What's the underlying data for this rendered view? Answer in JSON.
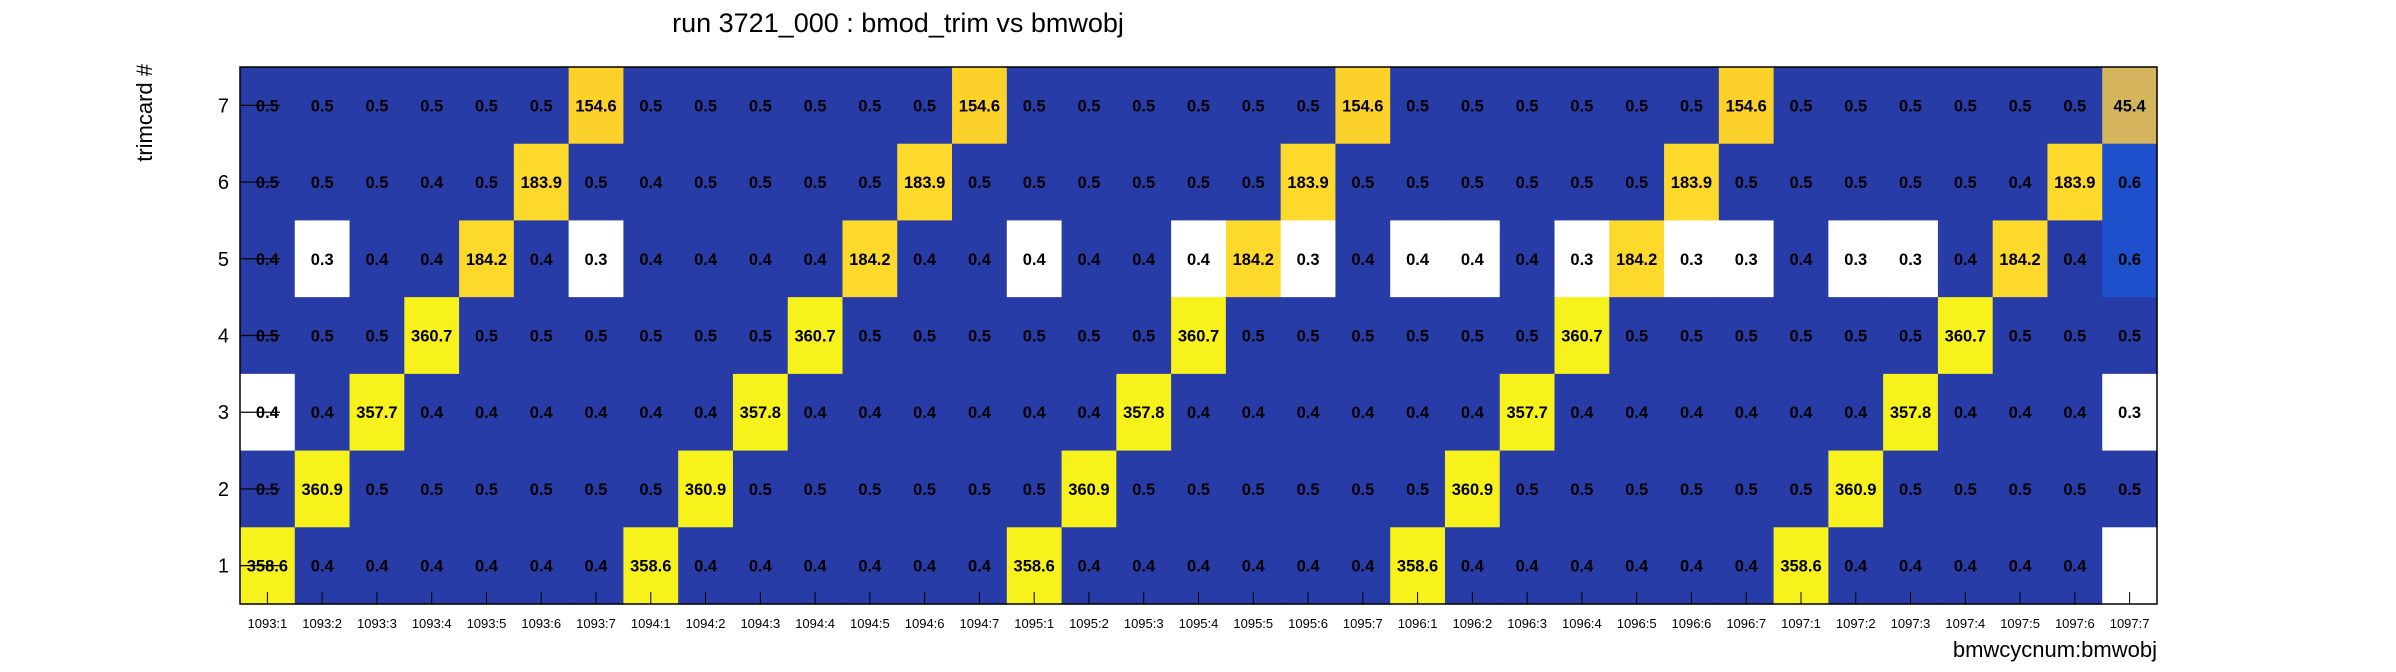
{
  "chart_data": {
    "type": "heatmap",
    "title": "run 3721_000 : bmod_trim vs bmwobj",
    "xlabel": "bmwcycnum:bmwobj",
    "ylabel": "trimcard #",
    "x_categories": [
      "1093:1",
      "1093:2",
      "1093:3",
      "1093:4",
      "1093:5",
      "1093:6",
      "1093:7",
      "1094:1",
      "1094:2",
      "1094:3",
      "1094:4",
      "1094:5",
      "1094:6",
      "1094:7",
      "1095:1",
      "1095:2",
      "1095:3",
      "1095:4",
      "1095:5",
      "1095:6",
      "1095:7",
      "1096:1",
      "1096:2",
      "1096:3",
      "1096:4",
      "1096:5",
      "1096:6",
      "1096:7",
      "1097:1",
      "1097:2",
      "1097:3",
      "1097:4",
      "1097:5",
      "1097:6",
      "1097:7"
    ],
    "y_categories": [
      "1",
      "2",
      "3",
      "4",
      "5",
      "6",
      "7"
    ],
    "rows": [
      {
        "y": "7",
        "cells": [
          "0.5",
          "0.5",
          "0.5",
          "0.5",
          "0.5",
          "0.5",
          "154.6",
          "0.5",
          "0.5",
          "0.5",
          "0.5",
          "0.5",
          "0.5",
          "154.6",
          "0.5",
          "0.5",
          "0.5",
          "0.5",
          "0.5",
          "0.5",
          "154.6",
          "0.5",
          "0.5",
          "0.5",
          "0.5",
          "0.5",
          "0.5",
          "154.6",
          "0.5",
          "0.5",
          "0.5",
          "0.5",
          "0.5",
          "0.5",
          "45.4"
        ],
        "colors": [
          "#283ca8",
          "#283ca8",
          "#283ca8",
          "#283ca8",
          "#283ca8",
          "#283ca8",
          "#fcd12a",
          "#283ca8",
          "#283ca8",
          "#283ca8",
          "#283ca8",
          "#283ca8",
          "#283ca8",
          "#fcd12a",
          "#283ca8",
          "#283ca8",
          "#283ca8",
          "#283ca8",
          "#283ca8",
          "#283ca8",
          "#fcd12a",
          "#283ca8",
          "#283ca8",
          "#283ca8",
          "#283ca8",
          "#283ca8",
          "#283ca8",
          "#fcd12a",
          "#283ca8",
          "#283ca8",
          "#283ca8",
          "#283ca8",
          "#283ca8",
          "#283ca8",
          "#d4b45c"
        ]
      },
      {
        "y": "6",
        "cells": [
          "0.5",
          "0.5",
          "0.5",
          "0.4",
          "0.5",
          "183.9",
          "0.5",
          "0.4",
          "0.5",
          "0.5",
          "0.5",
          "0.5",
          "183.9",
          "0.5",
          "0.5",
          "0.5",
          "0.5",
          "0.5",
          "0.5",
          "183.9",
          "0.5",
          "0.5",
          "0.5",
          "0.5",
          "0.5",
          "0.5",
          "183.9",
          "0.5",
          "0.5",
          "0.5",
          "0.5",
          "0.5",
          "0.4",
          "183.9",
          "0.6"
        ],
        "colors": [
          "#283ca8",
          "#283ca8",
          "#283ca8",
          "#283ca8",
          "#283ca8",
          "#fcd92a",
          "#283ca8",
          "#283ca8",
          "#283ca8",
          "#283ca8",
          "#283ca8",
          "#283ca8",
          "#fcd92a",
          "#283ca8",
          "#283ca8",
          "#283ca8",
          "#283ca8",
          "#283ca8",
          "#283ca8",
          "#fcd92a",
          "#283ca8",
          "#283ca8",
          "#283ca8",
          "#283ca8",
          "#283ca8",
          "#283ca8",
          "#fcd92a",
          "#283ca8",
          "#283ca8",
          "#283ca8",
          "#283ca8",
          "#283ca8",
          "#283ca8",
          "#fcd92a",
          "#1e50cc"
        ]
      },
      {
        "y": "5",
        "cells": [
          "0.4",
          "0.3",
          "0.4",
          "0.4",
          "184.2",
          "0.4",
          "0.3",
          "0.4",
          "0.4",
          "0.4",
          "0.4",
          "184.2",
          "0.4",
          "0.4",
          "0.4",
          "0.4",
          "0.4",
          "0.4",
          "184.2",
          "0.3",
          "0.4",
          "0.4",
          "0.4",
          "0.4",
          "0.3",
          "184.2",
          "0.3",
          "0.3",
          "0.4",
          "0.3",
          "0.3",
          "0.4",
          "184.2",
          "0.4",
          "0.6"
        ],
        "colors": [
          "#283ca8",
          "#ffffff",
          "#283ca8",
          "#283ca8",
          "#fcd92a",
          "#283ca8",
          "#ffffff",
          "#283ca8",
          "#283ca8",
          "#283ca8",
          "#283ca8",
          "#fcd92a",
          "#283ca8",
          "#283ca8",
          "#ffffff",
          "#283ca8",
          "#283ca8",
          "#ffffff",
          "#fcd92a",
          "#ffffff",
          "#283ca8",
          "#ffffff",
          "#ffffff",
          "#283ca8",
          "#ffffff",
          "#fcd92a",
          "#ffffff",
          "#ffffff",
          "#283ca8",
          "#ffffff",
          "#ffffff",
          "#283ca8",
          "#fcd92a",
          "#283ca8",
          "#1e50cc"
        ]
      },
      {
        "y": "4",
        "cells": [
          "0.5",
          "0.5",
          "0.5",
          "360.7",
          "0.5",
          "0.5",
          "0.5",
          "0.5",
          "0.5",
          "0.5",
          "360.7",
          "0.5",
          "0.5",
          "0.5",
          "0.5",
          "0.5",
          "0.5",
          "360.7",
          "0.5",
          "0.5",
          "0.5",
          "0.5",
          "0.5",
          "0.5",
          "360.7",
          "0.5",
          "0.5",
          "0.5",
          "0.5",
          "0.5",
          "0.5",
          "360.7",
          "0.5",
          "0.5",
          "0.5"
        ],
        "colors": [
          "#283ca8",
          "#283ca8",
          "#283ca8",
          "#f8f21c",
          "#283ca8",
          "#283ca8",
          "#283ca8",
          "#283ca8",
          "#283ca8",
          "#283ca8",
          "#f8f21c",
          "#283ca8",
          "#283ca8",
          "#283ca8",
          "#283ca8",
          "#283ca8",
          "#283ca8",
          "#f8f21c",
          "#283ca8",
          "#283ca8",
          "#283ca8",
          "#283ca8",
          "#283ca8",
          "#283ca8",
          "#f8f21c",
          "#283ca8",
          "#283ca8",
          "#283ca8",
          "#283ca8",
          "#283ca8",
          "#283ca8",
          "#f8f21c",
          "#283ca8",
          "#283ca8",
          "#283ca8"
        ]
      },
      {
        "y": "3",
        "cells": [
          "0.4",
          "0.4",
          "357.7",
          "0.4",
          "0.4",
          "0.4",
          "0.4",
          "0.4",
          "0.4",
          "357.8",
          "0.4",
          "0.4",
          "0.4",
          "0.4",
          "0.4",
          "0.4",
          "357.8",
          "0.4",
          "0.4",
          "0.4",
          "0.4",
          "0.4",
          "0.4",
          "357.7",
          "0.4",
          "0.4",
          "0.4",
          "0.4",
          "0.4",
          "0.4",
          "357.8",
          "0.4",
          "0.4",
          "0.4",
          "0.3"
        ],
        "colors": [
          "#ffffff",
          "#283ca8",
          "#f8f21c",
          "#283ca8",
          "#283ca8",
          "#283ca8",
          "#283ca8",
          "#283ca8",
          "#283ca8",
          "#f8f21c",
          "#283ca8",
          "#283ca8",
          "#283ca8",
          "#283ca8",
          "#283ca8",
          "#283ca8",
          "#f8f21c",
          "#283ca8",
          "#283ca8",
          "#283ca8",
          "#283ca8",
          "#283ca8",
          "#283ca8",
          "#f8f21c",
          "#283ca8",
          "#283ca8",
          "#283ca8",
          "#283ca8",
          "#283ca8",
          "#283ca8",
          "#f8f21c",
          "#283ca8",
          "#283ca8",
          "#283ca8",
          "#ffffff"
        ]
      },
      {
        "y": "2",
        "cells": [
          "0.5",
          "360.9",
          "0.5",
          "0.5",
          "0.5",
          "0.5",
          "0.5",
          "0.5",
          "360.9",
          "0.5",
          "0.5",
          "0.5",
          "0.5",
          "0.5",
          "0.5",
          "360.9",
          "0.5",
          "0.5",
          "0.5",
          "0.5",
          "0.5",
          "0.5",
          "360.9",
          "0.5",
          "0.5",
          "0.5",
          "0.5",
          "0.5",
          "0.5",
          "360.9",
          "0.5",
          "0.5",
          "0.5",
          "0.5",
          "0.5"
        ],
        "colors": [
          "#283ca8",
          "#f8f21c",
          "#283ca8",
          "#283ca8",
          "#283ca8",
          "#283ca8",
          "#283ca8",
          "#283ca8",
          "#f8f21c",
          "#283ca8",
          "#283ca8",
          "#283ca8",
          "#283ca8",
          "#283ca8",
          "#283ca8",
          "#f8f21c",
          "#283ca8",
          "#283ca8",
          "#283ca8",
          "#283ca8",
          "#283ca8",
          "#283ca8",
          "#f8f21c",
          "#283ca8",
          "#283ca8",
          "#283ca8",
          "#283ca8",
          "#283ca8",
          "#283ca8",
          "#f8f21c",
          "#283ca8",
          "#283ca8",
          "#283ca8",
          "#283ca8",
          "#283ca8"
        ]
      },
      {
        "y": "1",
        "cells": [
          "358.6",
          "0.4",
          "0.4",
          "0.4",
          "0.4",
          "0.4",
          "0.4",
          "358.6",
          "0.4",
          "0.4",
          "0.4",
          "0.4",
          "0.4",
          "0.4",
          "358.6",
          "0.4",
          "0.4",
          "0.4",
          "0.4",
          "0.4",
          "0.4",
          "358.6",
          "0.4",
          "0.4",
          "0.4",
          "0.4",
          "0.4",
          "0.4",
          "358.6",
          "0.4",
          "0.4",
          "0.4",
          "0.4",
          "0.4",
          ""
        ],
        "colors": [
          "#f8f21c",
          "#283ca8",
          "#283ca8",
          "#283ca8",
          "#283ca8",
          "#283ca8",
          "#283ca8",
          "#f8f21c",
          "#283ca8",
          "#283ca8",
          "#283ca8",
          "#283ca8",
          "#283ca8",
          "#283ca8",
          "#f8f21c",
          "#283ca8",
          "#283ca8",
          "#283ca8",
          "#283ca8",
          "#283ca8",
          "#283ca8",
          "#f8f21c",
          "#283ca8",
          "#283ca8",
          "#283ca8",
          "#283ca8",
          "#283ca8",
          "#283ca8",
          "#f8f21c",
          "#283ca8",
          "#283ca8",
          "#283ca8",
          "#283ca8",
          "#283ca8",
          "#ffffff"
        ]
      }
    ],
    "grid": false,
    "frame_color": "#000000"
  }
}
